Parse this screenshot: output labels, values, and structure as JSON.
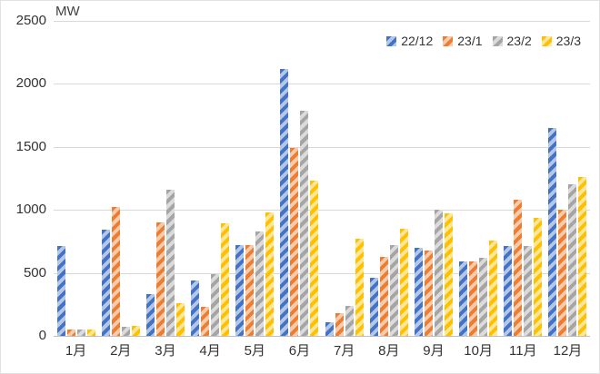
{
  "chart_data": {
    "type": "bar",
    "title": "",
    "ylabel": "MW",
    "xlabel": "",
    "ylim": [
      0,
      2500
    ],
    "yticks": [
      0,
      500,
      1000,
      1500,
      2000,
      2500
    ],
    "grid": true,
    "legend_position": "top-right",
    "categories": [
      "1月",
      "2月",
      "3月",
      "4月",
      "5月",
      "6月",
      "7月",
      "8月",
      "9月",
      "10月",
      "11月",
      "12月"
    ],
    "series": [
      {
        "name": "22/12",
        "color_dark": "#4472C4",
        "color_light": "#B4C7E7",
        "values": [
          710,
          840,
          330,
          440,
          720,
          2120,
          110,
          460,
          700,
          590,
          710,
          1650
        ]
      },
      {
        "name": "23/1",
        "color_dark": "#ED7D31",
        "color_light": "#F8CBAD",
        "values": [
          50,
          1020,
          900,
          230,
          720,
          1490,
          180,
          630,
          680,
          590,
          1080,
          1000
        ]
      },
      {
        "name": "23/2",
        "color_dark": "#A5A5A5",
        "color_light": "#DBDBDB",
        "values": [
          50,
          70,
          1160,
          490,
          830,
          1790,
          240,
          720,
          1000,
          620,
          710,
          1200
        ]
      },
      {
        "name": "23/3",
        "color_dark": "#FFC000",
        "color_light": "#FFE699",
        "values": [
          50,
          80,
          260,
          890,
          980,
          1230,
          770,
          850,
          970,
          760,
          940,
          1260
        ]
      }
    ]
  }
}
